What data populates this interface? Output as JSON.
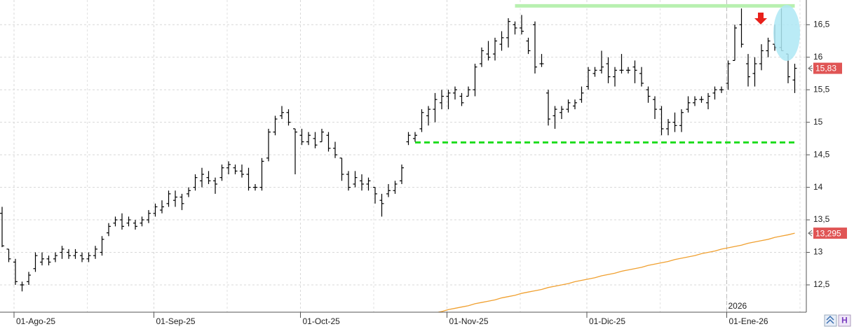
{
  "chart_data": {
    "type": "ohlc",
    "ylim": [
      12.08,
      16.88
    ],
    "yticks": [
      {
        "value": 12.5,
        "label": "12,5"
      },
      13,
      {
        "value": 13.5,
        "label": "13,5"
      },
      14,
      {
        "value": 14.5,
        "label": "14,5"
      },
      15,
      {
        "value": 15.5,
        "label": "15,5"
      },
      16,
      {
        "value": 16.5,
        "label": "16,5"
      }
    ],
    "grid": true,
    "color": "#000000",
    "xlabels": [
      {
        "index": 2,
        "label": "01-Ago-25"
      },
      {
        "index": 23,
        "label": "01-Sep-25"
      },
      {
        "index": 45,
        "label": "01-Oct-25"
      },
      {
        "index": 67,
        "label": "01-Nov-25"
      },
      {
        "index": 88,
        "label": "01-Dic-25"
      },
      {
        "index": 109,
        "label": "01-Ene-26"
      }
    ],
    "year_marker": {
      "index": 109,
      "label": "2026"
    },
    "bars": [
      [
        13.6,
        13.7,
        13.08,
        13.1
      ],
      [
        13.05,
        13.05,
        12.85,
        12.9
      ],
      [
        12.85,
        12.9,
        12.5,
        12.55
      ],
      [
        12.5,
        12.55,
        12.4,
        12.5
      ],
      [
        12.55,
        12.7,
        12.5,
        12.65
      ],
      [
        12.75,
        13.0,
        12.7,
        12.95
      ],
      [
        12.85,
        13.0,
        12.8,
        12.9
      ],
      [
        12.9,
        12.95,
        12.8,
        12.85
      ],
      [
        12.9,
        13.0,
        12.85,
        12.95
      ],
      [
        13.0,
        13.1,
        12.9,
        13.05
      ],
      [
        13.0,
        13.05,
        12.9,
        12.95
      ],
      [
        12.95,
        13.05,
        12.9,
        13.0
      ],
      [
        12.95,
        13.0,
        12.85,
        12.9
      ],
      [
        12.9,
        13.0,
        12.85,
        12.95
      ],
      [
        12.95,
        13.1,
        12.9,
        13.05
      ],
      [
        13.0,
        13.25,
        12.95,
        13.2
      ],
      [
        13.3,
        13.45,
        13.25,
        13.4
      ],
      [
        13.45,
        13.55,
        13.4,
        13.5
      ],
      [
        13.5,
        13.6,
        13.35,
        13.4
      ],
      [
        13.45,
        13.55,
        13.4,
        13.5
      ],
      [
        13.45,
        13.5,
        13.35,
        13.4
      ],
      [
        13.45,
        13.55,
        13.4,
        13.5
      ],
      [
        13.5,
        13.65,
        13.45,
        13.6
      ],
      [
        13.6,
        13.75,
        13.55,
        13.7
      ],
      [
        13.65,
        13.8,
        13.6,
        13.7
      ],
      [
        13.75,
        13.95,
        13.7,
        13.9
      ],
      [
        13.8,
        13.95,
        13.7,
        13.85
      ],
      [
        13.85,
        13.9,
        13.65,
        13.75
      ],
      [
        13.9,
        14.0,
        13.85,
        13.95
      ],
      [
        14.0,
        14.2,
        13.95,
        14.15
      ],
      [
        14.1,
        14.3,
        14.0,
        14.2
      ],
      [
        14.15,
        14.25,
        14.05,
        14.1
      ],
      [
        14.1,
        14.15,
        13.9,
        14.05
      ],
      [
        14.15,
        14.35,
        14.1,
        14.3
      ],
      [
        14.3,
        14.4,
        14.2,
        14.35
      ],
      [
        14.3,
        14.35,
        14.2,
        14.25
      ],
      [
        14.25,
        14.35,
        14.15,
        14.2
      ],
      [
        14.2,
        14.3,
        13.95,
        14.0
      ],
      [
        14.0,
        14.05,
        13.95,
        14.0
      ],
      [
        14.0,
        14.45,
        13.95,
        14.4
      ],
      [
        14.45,
        14.9,
        14.4,
        14.85
      ],
      [
        14.85,
        15.1,
        14.8,
        15.05
      ],
      [
        15.1,
        15.25,
        15.05,
        15.15
      ],
      [
        15.15,
        15.2,
        14.95,
        15.0
      ],
      [
        14.9,
        14.9,
        14.2,
        14.85
      ],
      [
        14.8,
        14.9,
        14.65,
        14.7
      ],
      [
        14.7,
        14.85,
        14.65,
        14.8
      ],
      [
        14.75,
        14.85,
        14.6,
        14.65
      ],
      [
        14.7,
        14.9,
        14.7,
        14.85
      ],
      [
        14.8,
        14.85,
        14.55,
        14.6
      ],
      [
        14.6,
        14.7,
        14.45,
        14.5
      ],
      [
        14.45,
        14.45,
        14.1,
        14.2
      ],
      [
        14.2,
        14.25,
        13.95,
        14.0
      ],
      [
        14.05,
        14.25,
        14.0,
        14.15
      ],
      [
        14.1,
        14.2,
        13.95,
        14.05
      ],
      [
        14.05,
        14.15,
        13.95,
        14.1
      ],
      [
        14.0,
        14.0,
        13.75,
        13.9
      ],
      [
        13.8,
        13.9,
        13.55,
        13.75
      ],
      [
        13.9,
        14.05,
        13.85,
        13.95
      ],
      [
        13.95,
        14.1,
        13.9,
        14.05
      ],
      [
        14.1,
        14.35,
        14.05,
        14.3
      ],
      [
        14.7,
        14.85,
        14.65,
        14.8
      ],
      [
        14.75,
        14.85,
        14.7,
        14.8
      ],
      [
        14.9,
        15.2,
        14.85,
        15.15
      ],
      [
        15.1,
        15.25,
        14.95,
        15.2
      ],
      [
        15.2,
        15.45,
        15.0,
        15.35
      ],
      [
        15.3,
        15.5,
        15.2,
        15.4
      ],
      [
        15.4,
        15.5,
        15.2,
        15.45
      ],
      [
        15.45,
        15.55,
        15.35,
        15.5
      ],
      [
        15.4,
        15.45,
        15.25,
        15.3
      ],
      [
        15.4,
        15.55,
        15.4,
        15.5
      ],
      [
        15.5,
        15.9,
        15.4,
        15.85
      ],
      [
        15.9,
        16.15,
        15.85,
        16.1
      ],
      [
        16.05,
        16.25,
        15.95,
        16.0
      ],
      [
        16.05,
        16.3,
        15.95,
        16.25
      ],
      [
        16.2,
        16.4,
        16.1,
        16.3
      ],
      [
        16.3,
        16.6,
        16.15,
        16.55
      ],
      [
        16.5,
        16.55,
        16.35,
        16.45
      ],
      [
        16.45,
        16.65,
        16.35,
        16.4
      ],
      [
        16.25,
        16.3,
        16.05,
        16.1
      ],
      [
        16.5,
        16.55,
        15.75,
        15.85
      ],
      [
        15.9,
        16.05,
        15.85,
        15.9
      ],
      [
        15.45,
        15.5,
        14.95,
        15.05
      ],
      [
        15.1,
        15.25,
        14.9,
        15.2
      ],
      [
        15.15,
        15.25,
        15.05,
        15.2
      ],
      [
        15.2,
        15.35,
        15.15,
        15.3
      ],
      [
        15.25,
        15.35,
        15.2,
        15.3
      ],
      [
        15.35,
        15.55,
        15.3,
        15.45
      ],
      [
        15.55,
        15.85,
        15.5,
        15.8
      ],
      [
        15.75,
        15.85,
        15.7,
        15.8
      ],
      [
        15.8,
        16.1,
        15.75,
        15.85
      ],
      [
        15.9,
        16.0,
        15.6,
        15.7
      ],
      [
        15.7,
        15.85,
        15.55,
        15.8
      ],
      [
        15.8,
        16.05,
        15.75,
        15.8
      ],
      [
        15.8,
        15.85,
        15.75,
        15.8
      ],
      [
        15.85,
        15.95,
        15.6,
        15.8
      ],
      [
        15.75,
        15.85,
        15.55,
        15.6
      ],
      [
        15.5,
        15.55,
        15.3,
        15.4
      ],
      [
        15.35,
        15.4,
        15.05,
        15.2
      ],
      [
        15.2,
        15.25,
        14.8,
        14.9
      ],
      [
        14.9,
        15.05,
        14.8,
        15.0
      ],
      [
        15.0,
        15.15,
        14.85,
        14.95
      ],
      [
        14.95,
        15.2,
        14.85,
        15.15
      ],
      [
        15.2,
        15.4,
        15.15,
        15.3
      ],
      [
        15.3,
        15.4,
        15.25,
        15.35
      ],
      [
        15.35,
        15.4,
        15.3,
        15.35
      ],
      [
        15.3,
        15.45,
        15.2,
        15.4
      ],
      [
        15.45,
        15.55,
        15.35,
        15.5
      ],
      [
        15.5,
        15.55,
        15.45,
        15.5
      ],
      [
        15.6,
        15.95,
        15.5,
        15.9
      ],
      [
        15.95,
        16.5,
        15.95,
        16.45
      ],
      [
        16.5,
        16.75,
        16.15,
        16.2
      ],
      [
        15.9,
        16.05,
        15.55,
        15.7
      ],
      [
        15.75,
        16.0,
        15.55,
        15.9
      ],
      [
        15.9,
        16.2,
        15.8,
        16.1
      ],
      [
        16.1,
        16.3,
        16.0,
        16.25
      ],
      [
        16.2,
        16.5,
        16.1,
        16.15
      ],
      [
        16.15,
        16.75,
        16.1,
        16.1
      ],
      [
        16.05,
        16.05,
        15.6,
        15.7
      ],
      [
        15.65,
        15.9,
        15.45,
        15.83
      ]
    ],
    "overlay_line": {
      "color": "#f0a030",
      "start_index": 65,
      "values": [
        12.07,
        12.09,
        12.12,
        12.14,
        12.16,
        12.18,
        12.21,
        12.23,
        12.25,
        12.27,
        12.3,
        12.32,
        12.34,
        12.37,
        12.39,
        12.41,
        12.43,
        12.46,
        12.48,
        12.5,
        12.52,
        12.55,
        12.57,
        12.59,
        12.61,
        12.64,
        12.66,
        12.68,
        12.71,
        12.73,
        12.75,
        12.77,
        12.8,
        12.82,
        12.84,
        12.86,
        12.89,
        12.91,
        12.93,
        12.95,
        12.98,
        13.0,
        13.02,
        13.05,
        13.07,
        13.09,
        13.11,
        13.14,
        13.16,
        13.18,
        13.2,
        13.23,
        13.25,
        13.27,
        13.295
      ]
    },
    "levels": [
      {
        "value": 16.79,
        "from": 77,
        "to": 119,
        "color": "#b8f0b0",
        "dashed": false
      },
      {
        "value": 14.69,
        "from": 62,
        "to": 119,
        "color": "#22dd22",
        "dashed": true
      }
    ],
    "last_labels": [
      {
        "value": 15.83,
        "label": "15,83",
        "color": "#e05555"
      },
      {
        "value": 13.295,
        "label": "13,295",
        "color": "#e05555"
      }
    ]
  }
}
